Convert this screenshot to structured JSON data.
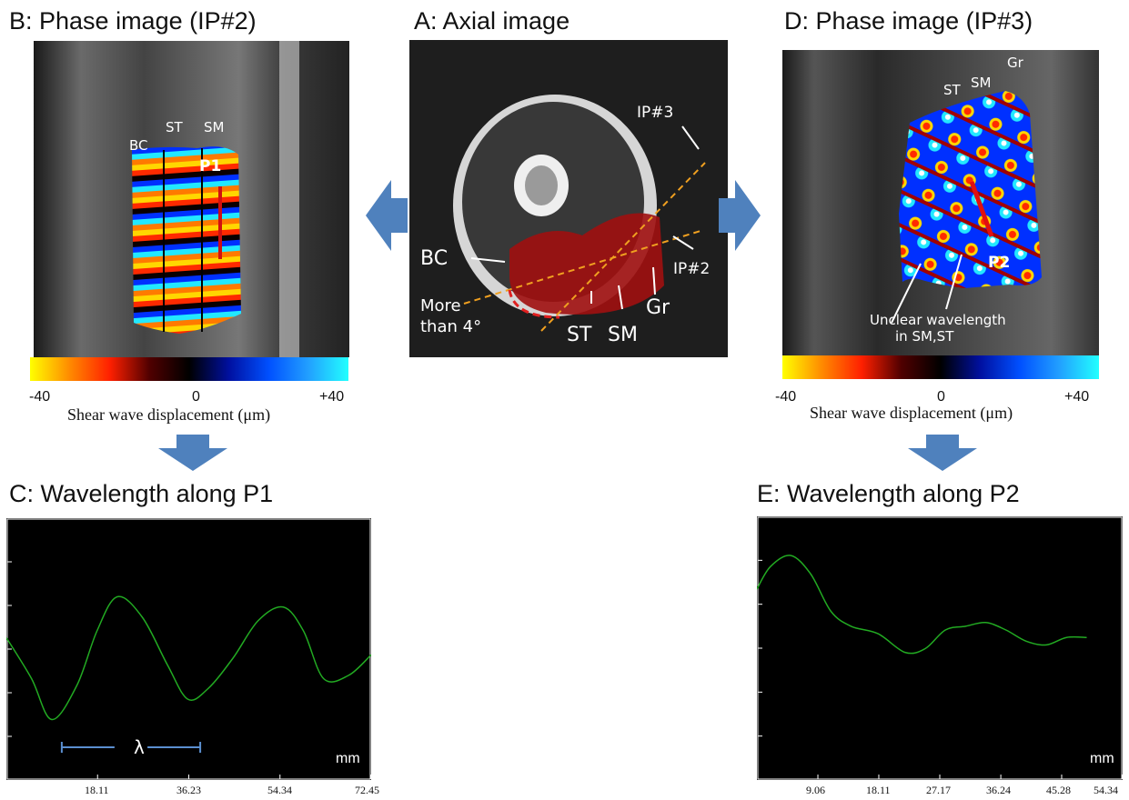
{
  "panels": {
    "a": {
      "title": "A: Axial image",
      "labels": {
        "bc": "BC",
        "st": "ST",
        "sm": "SM",
        "gr": "Gr",
        "ip2": "IP#2",
        "ip3": "IP#3",
        "angle_line1": "More",
        "angle_line2": "than 4°"
      }
    },
    "b": {
      "title": "B: Phase image (IP#2)",
      "labels": {
        "bc": "BC",
        "st": "ST",
        "sm": "SM",
        "p1": "P1"
      },
      "colorbar": {
        "min": "-40",
        "mid": "0",
        "max": "+40",
        "caption": "Shear wave displacement (μm)"
      }
    },
    "c": {
      "title": "C: Wavelength along P1",
      "lambda": "λ",
      "unit": "mm",
      "xticks": [
        "18.11",
        "36.23",
        "54.34",
        "72.45"
      ]
    },
    "d": {
      "title": "D: Phase image (IP#3)",
      "labels": {
        "st": "ST",
        "sm": "SM",
        "gr": "Gr",
        "p2": "P2",
        "unclear1": "Unclear wavelength",
        "unclear2": "in SM,ST"
      },
      "colorbar": {
        "min": "-40",
        "mid": "0",
        "max": "+40",
        "caption": "Shear wave displacement (μm)"
      }
    },
    "e": {
      "title": "E: Wavelength along P2",
      "unit": "mm",
      "xticks": [
        "9.06",
        "18.11",
        "27.17",
        "36.24",
        "45.28",
        "54.34"
      ]
    }
  },
  "colors": {
    "arrow": "#4f81bd",
    "curve": "#22aa22",
    "muscle": "#a01010",
    "dashed": "#f0a020",
    "lambda_bar": "#5b8fd0"
  },
  "chart_data": [
    {
      "type": "line",
      "title": "C: Wavelength along P1",
      "xlabel": "mm",
      "xticks": [
        18.11,
        36.23,
        54.34,
        72.45
      ],
      "xlim": [
        0,
        72.45
      ],
      "series": [
        {
          "x": [
            0,
            5,
            9,
            14,
            18,
            22,
            27,
            32,
            36,
            40,
            45,
            50,
            55,
            59,
            63,
            68,
            72.45
          ],
          "y": [
            0.3,
            -0.3,
            -0.9,
            -0.4,
            0.4,
            0.9,
            0.6,
            -0.1,
            -0.6,
            -0.45,
            0.0,
            0.55,
            0.75,
            0.4,
            -0.3,
            -0.25,
            0.05
          ]
        }
      ]
    },
    {
      "type": "line",
      "title": "E: Wavelength along P2",
      "xlabel": "mm",
      "xticks": [
        9.06,
        18.11,
        27.17,
        36.24,
        45.28,
        54.34
      ],
      "xlim": [
        0,
        54.34
      ],
      "series": [
        {
          "x": [
            0,
            2,
            5,
            8,
            11,
            14,
            18,
            22,
            25,
            28,
            31,
            34,
            37,
            40,
            43,
            46,
            49
          ],
          "y": [
            0.55,
            0.85,
            1.0,
            0.75,
            0.25,
            0.05,
            -0.05,
            -0.3,
            -0.25,
            0.0,
            0.05,
            0.1,
            0.0,
            -0.15,
            -0.2,
            -0.1,
            -0.1
          ]
        }
      ]
    }
  ]
}
